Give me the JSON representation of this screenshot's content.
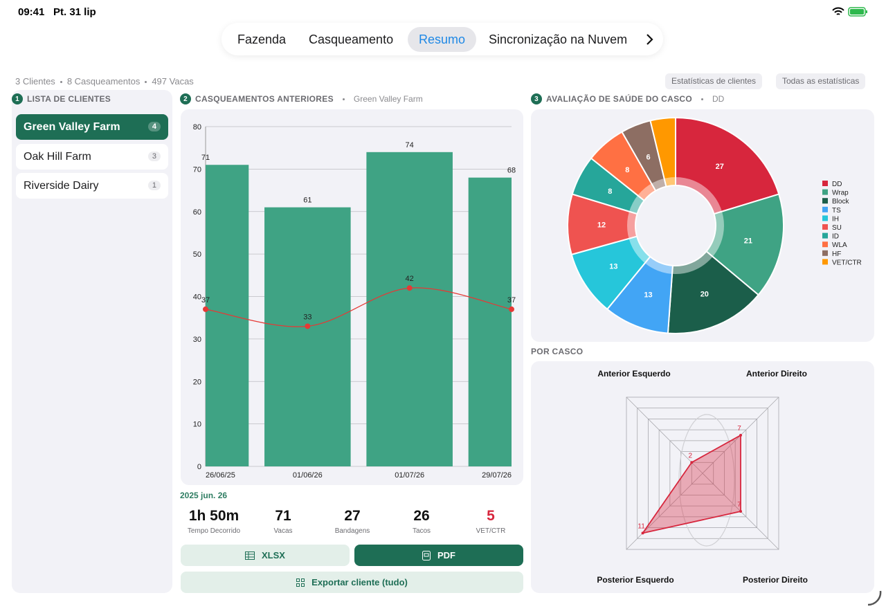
{
  "status_bar": {
    "time": "09:41",
    "date": "Pt. 31 lip"
  },
  "tabs": {
    "items": [
      "Fazenda",
      "Casqueamento",
      "Resumo",
      "Sincronização na Nuvem"
    ],
    "active": 2
  },
  "summary": [
    "3 Clientes",
    "8 Casqueamentos",
    "497 Vacas"
  ],
  "actions": [
    "Estatísticas de clientes",
    "Todas as estatísticas"
  ],
  "clients_panel": {
    "number": "1",
    "title": "LISTA DE CLIENTES",
    "selected": 0,
    "clients": [
      {
        "name": "Green Valley Farm",
        "count": 4
      },
      {
        "name": "Oak Hill Farm",
        "count": 3
      },
      {
        "name": "Riverside Dairy",
        "count": 1
      }
    ]
  },
  "history_panel": {
    "number": "2",
    "title": "CASQUEAMENTOS ANTERIORES",
    "subtitle": "Green Valley Farm",
    "session_date": "2025 jun. 26",
    "stats": [
      {
        "value": "1h 50m",
        "label": "Tempo Decorrido"
      },
      {
        "value": 71,
        "label": "Vacas"
      },
      {
        "value": 27,
        "label": "Bandagens"
      },
      {
        "value": 26,
        "label": "Tacos"
      },
      {
        "value": 5,
        "label": "VET/CTR",
        "color": "#d7263d"
      }
    ],
    "buttons": {
      "xlsx": "XLSX",
      "pdf": "PDF",
      "export": "Exportar cliente (tudo)"
    }
  },
  "health_panel": {
    "number": "3",
    "title": "AVALIAÇÃO DE SAÚDE DO CASCO",
    "subtitle": "DD"
  },
  "chart_data": [
    {
      "type": "bar",
      "categories": [
        "26/06/25",
        "01/06/26",
        "01/07/26",
        "29/07/26"
      ],
      "series": [
        {
          "type": "bar",
          "color": "#3fa384",
          "values": [
            71,
            61,
            74,
            68
          ]
        },
        {
          "type": "line",
          "color": "#e53935",
          "values": [
            37,
            33,
            42,
            37
          ]
        }
      ],
      "ylim": [
        0,
        80
      ],
      "yticks": [
        0,
        10,
        20,
        30,
        40,
        50,
        60,
        70,
        80
      ],
      "grid": true
    },
    {
      "type": "pie",
      "categories": [
        "DD",
        "Wrap",
        "Block",
        "TS",
        "IH",
        "SU",
        "ID",
        "WLA",
        "HF",
        "VET/CTR"
      ],
      "values": [
        27,
        21,
        20,
        13,
        13,
        12,
        8,
        8,
        6,
        5
      ],
      "colors": [
        "#d7263d",
        "#3fa384",
        "#1b5e4a",
        "#42a5f5",
        "#26c6da",
        "#ef5350",
        "#26a69a",
        "#ff7043",
        "#8d6e63",
        "#ff9800"
      ],
      "legend": "right"
    },
    {
      "type": "radar",
      "title": "POR CASCO",
      "categories": [
        "Anterior Esquerdo",
        "Anterior Direito",
        "Posterior Direito",
        "Posterior Esquerdo"
      ],
      "values": [
        2,
        7,
        7,
        11
      ],
      "rlim": [
        0,
        14
      ],
      "color": "#d7263d"
    }
  ]
}
